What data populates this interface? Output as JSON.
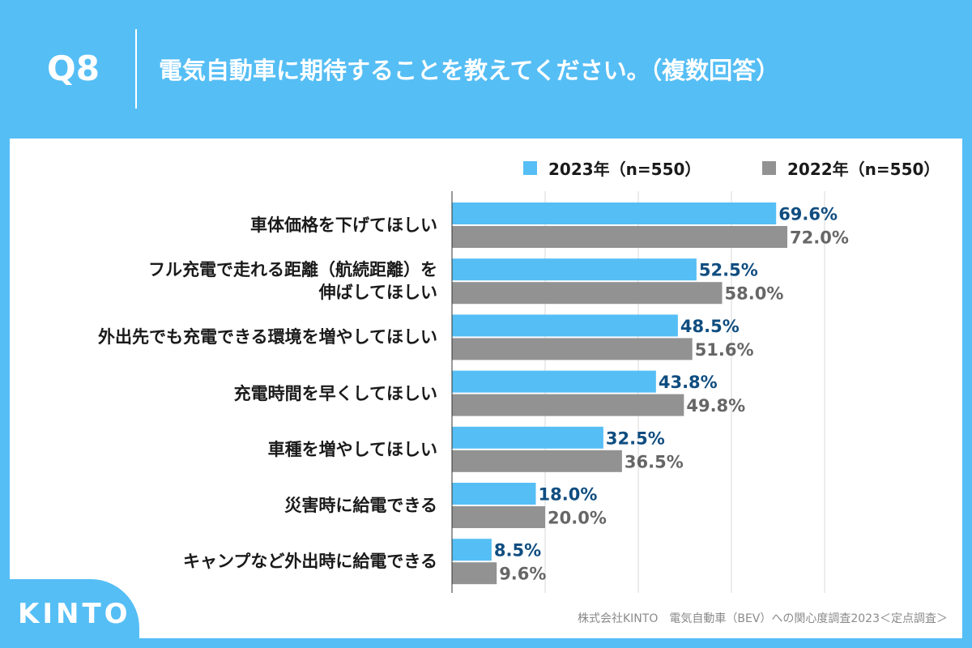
{
  "header": {
    "question_no": "Q8",
    "title": "電気自動車に期待することを教えてください。（複数回答）"
  },
  "legend": {
    "series_2023": "2023年（n=550）",
    "series_2022": "2022年（n=550）"
  },
  "colors": {
    "background": "#55BEF5",
    "bar_2023": "#55BEF5",
    "bar_2022": "#929292",
    "label_2023": "#0F4D80",
    "label_2022": "#666666",
    "grid": "#D9D9D9"
  },
  "chart_data": {
    "type": "bar",
    "orientation": "horizontal",
    "title": "電気自動車に期待することを教えてください。（複数回答）",
    "categories": [
      "車体価格を下げてほしい",
      "フル充電で走れる距離（航続距離）を\n伸ばしてほしい",
      "外出先でも充電できる環境を増やしてほしい",
      "充電時間を早くしてほしい",
      "車種を増やしてほしい",
      "災害時に給電できる",
      "キャンプなど外出時に給電できる"
    ],
    "series": [
      {
        "name": "2023年（n=550）",
        "values": [
          69.6,
          52.5,
          48.5,
          43.8,
          32.5,
          18.0,
          8.5
        ],
        "labels": [
          "69.6%",
          "52.5%",
          "48.5%",
          "43.8%",
          "32.5%",
          "18.0%",
          "8.5%"
        ]
      },
      {
        "name": "2022年（n=550）",
        "values": [
          72.0,
          58.0,
          51.6,
          49.8,
          36.5,
          20.0,
          9.6
        ],
        "labels": [
          "72.0%",
          "58.0%",
          "51.6%",
          "49.8%",
          "36.5%",
          "20.0%",
          "9.6%"
        ]
      }
    ],
    "xlim": [
      0,
      100
    ],
    "grid": true,
    "legend_position": "top-right"
  },
  "footer": {
    "logo": "KINTO",
    "source": "株式会社KINTO　電気自動車（BEV）への関心度調査2023＜定点調査＞"
  }
}
